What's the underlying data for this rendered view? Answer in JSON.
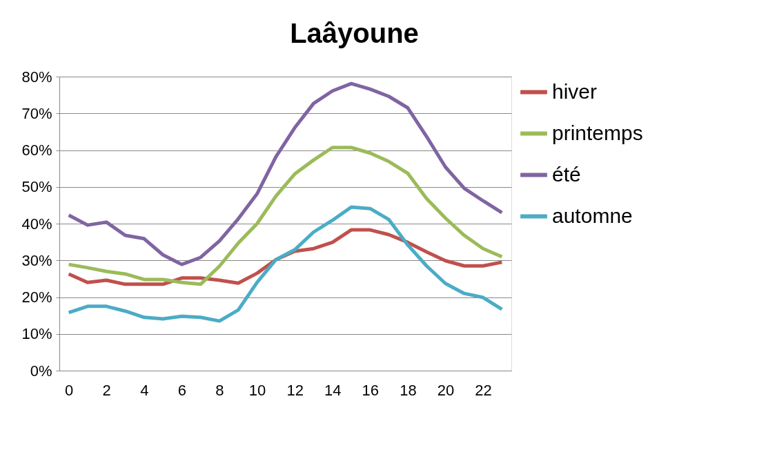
{
  "chart_data": {
    "type": "line",
    "title": "Laâyoune",
    "x": [
      0,
      1,
      2,
      3,
      4,
      5,
      6,
      7,
      8,
      9,
      10,
      11,
      12,
      13,
      14,
      15,
      16,
      17,
      18,
      19,
      20,
      21,
      22,
      23
    ],
    "series": [
      {
        "name": "hiver",
        "color": "#c0504d",
        "values": [
          26.3,
          24,
          24.6,
          23.5,
          23.5,
          23.5,
          25.2,
          25.2,
          24.6,
          23.8,
          26.5,
          30.2,
          32.5,
          33.2,
          34.9,
          38.3,
          38.3,
          37,
          34.9,
          32.3,
          29.9,
          28.5,
          28.5,
          29.5
        ]
      },
      {
        "name": "printemps",
        "color": "#9bbb59",
        "values": [
          28.9,
          28,
          27,
          26.3,
          24.8,
          24.8,
          24,
          23.5,
          28.4,
          34.7,
          40,
          47.5,
          53.5,
          57.3,
          60.7,
          60.7,
          59.2,
          56.9,
          53.7,
          46.8,
          41.5,
          36.8,
          33.2,
          31
        ]
      },
      {
        "name": "été",
        "color": "#8064a2",
        "values": [
          42.3,
          39.6,
          40.4,
          36.8,
          35.9,
          31.5,
          28.9,
          30.8,
          35.3,
          41.3,
          48.1,
          58.2,
          66.1,
          72.7,
          76.1,
          78.1,
          76.6,
          74.6,
          71.5,
          63.7,
          55.4,
          49.6,
          46.2,
          43
        ]
      },
      {
        "name": "automne",
        "color": "#4bacc6",
        "values": [
          15.8,
          17.5,
          17.5,
          16.2,
          14.5,
          14.1,
          14.8,
          14.5,
          13.5,
          16.5,
          24,
          30.2,
          32.9,
          37.7,
          40.9,
          44.5,
          44.1,
          41.1,
          34.2,
          28.5,
          23.7,
          21,
          19.9,
          16.7
        ]
      }
    ],
    "xlim": [
      -0.5,
      23.5
    ],
    "xticks": [
      0,
      2,
      4,
      6,
      8,
      10,
      12,
      14,
      16,
      18,
      20,
      22
    ],
    "ylim": [
      0,
      80
    ],
    "yticks": [
      {
        "value": 0,
        "label": "0%"
      },
      {
        "value": 10,
        "label": "10%"
      },
      {
        "value": 20,
        "label": "20%"
      },
      {
        "value": 30,
        "label": "30%"
      },
      {
        "value": 40,
        "label": "40%"
      },
      {
        "value": 50,
        "label": "50%"
      },
      {
        "value": 60,
        "label": "60%"
      },
      {
        "value": 70,
        "label": "70%"
      },
      {
        "value": 80,
        "label": "80%"
      }
    ],
    "grid": "y",
    "legend": "right",
    "marker": "none",
    "line_style": "solid"
  }
}
